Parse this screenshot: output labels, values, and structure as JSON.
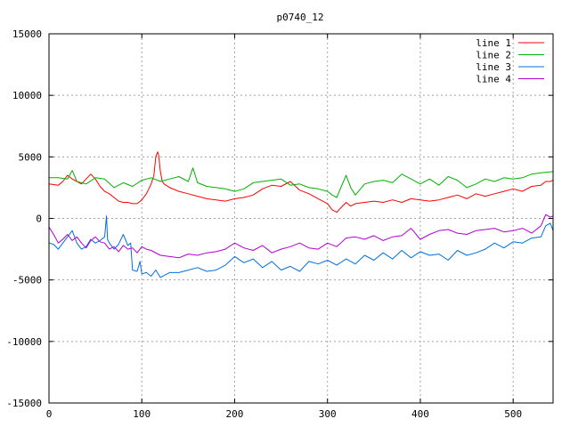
{
  "chart_data": {
    "type": "line",
    "title": "p0740_12",
    "xlabel": "",
    "ylabel": "",
    "xlim": [
      0,
      543
    ],
    "ylim": [
      -15000,
      15000
    ],
    "xticks": [
      0,
      100,
      200,
      300,
      400,
      500
    ],
    "yticks": [
      -15000,
      -10000,
      -5000,
      0,
      5000,
      10000,
      15000
    ],
    "grid": true,
    "legend_position": "top-right",
    "series": [
      {
        "name": "line 1",
        "color": "#ff0000",
        "x": [
          0,
          10,
          15,
          20,
          25,
          30,
          35,
          40,
          45,
          50,
          55,
          60,
          65,
          70,
          75,
          80,
          85,
          90,
          95,
          100,
          105,
          110,
          113,
          115,
          117,
          118,
          120,
          122,
          124,
          130,
          140,
          150,
          160,
          170,
          180,
          190,
          200,
          210,
          220,
          230,
          240,
          250,
          260,
          270,
          280,
          290,
          300,
          305,
          310,
          315,
          320,
          325,
          330,
          340,
          350,
          360,
          370,
          380,
          390,
          400,
          410,
          420,
          430,
          440,
          450,
          460,
          470,
          480,
          490,
          500,
          510,
          520,
          530,
          535,
          540,
          543
        ],
        "y": [
          2800,
          2700,
          3000,
          3500,
          3200,
          3000,
          2800,
          3200,
          3600,
          3200,
          2600,
          2200,
          2000,
          1700,
          1400,
          1300,
          1300,
          1200,
          1200,
          1500,
          2000,
          2800,
          3500,
          5000,
          5400,
          5200,
          3800,
          3000,
          2800,
          2500,
          2200,
          2000,
          1800,
          1600,
          1500,
          1400,
          1600,
          1700,
          1900,
          2400,
          2700,
          2600,
          3000,
          2300,
          2000,
          1600,
          1200,
          700,
          500,
          900,
          1300,
          1000,
          1200,
          1300,
          1400,
          1300,
          1500,
          1300,
          1600,
          1500,
          1400,
          1500,
          1700,
          1900,
          1600,
          2000,
          1800,
          2000,
          2200,
          2400,
          2200,
          2600,
          2700,
          3000,
          3000,
          3100
        ]
      },
      {
        "name": "line 2",
        "color": "#00b000",
        "x": [
          0,
          10,
          20,
          25,
          30,
          40,
          50,
          60,
          70,
          80,
          90,
          100,
          110,
          120,
          130,
          140,
          150,
          155,
          160,
          170,
          180,
          190,
          200,
          210,
          220,
          230,
          240,
          250,
          260,
          270,
          280,
          290,
          300,
          305,
          310,
          315,
          320,
          325,
          330,
          340,
          350,
          360,
          370,
          380,
          390,
          400,
          410,
          420,
          430,
          440,
          450,
          460,
          470,
          480,
          490,
          500,
          510,
          520,
          530,
          543
        ],
        "y": [
          3300,
          3300,
          3200,
          3900,
          3000,
          2800,
          3300,
          3200,
          2500,
          2900,
          2600,
          3100,
          3300,
          3000,
          3200,
          3400,
          3000,
          4100,
          2900,
          2600,
          2500,
          2400,
          2200,
          2400,
          2900,
          3000,
          3100,
          3200,
          2700,
          2800,
          2500,
          2400,
          2200,
          1900,
          1700,
          2600,
          3500,
          2500,
          1900,
          2800,
          3000,
          3100,
          2900,
          3600,
          3200,
          2800,
          3200,
          2700,
          3400,
          3100,
          2500,
          2800,
          3200,
          3000,
          3300,
          3200,
          3300,
          3600,
          3700,
          3800
        ]
      },
      {
        "name": "line 3",
        "color": "#0070e0",
        "x": [
          0,
          5,
          10,
          15,
          20,
          25,
          30,
          35,
          40,
          45,
          50,
          55,
          60,
          62,
          63,
          65,
          70,
          75,
          80,
          85,
          88,
          90,
          95,
          98,
          100,
          105,
          110,
          115,
          120,
          125,
          130,
          140,
          150,
          160,
          170,
          180,
          190,
          200,
          210,
          220,
          230,
          240,
          250,
          260,
          270,
          280,
          290,
          300,
          310,
          320,
          330,
          340,
          350,
          360,
          370,
          380,
          390,
          400,
          410,
          420,
          430,
          440,
          450,
          460,
          470,
          480,
          490,
          500,
          510,
          520,
          530,
          535,
          540,
          543
        ],
        "y": [
          -2000,
          -2100,
          -2500,
          -2000,
          -1500,
          -1000,
          -2000,
          -2500,
          -2300,
          -1700,
          -2000,
          -1800,
          -1500,
          200,
          -1700,
          -2000,
          -2500,
          -2100,
          -1300,
          -2200,
          -2000,
          -4200,
          -4300,
          -3500,
          -4500,
          -4400,
          -4700,
          -4200,
          -4800,
          -4600,
          -4400,
          -4400,
          -4200,
          -4000,
          -4300,
          -4200,
          -3800,
          -3100,
          -3600,
          -3300,
          -4000,
          -3500,
          -4200,
          -3900,
          -4300,
          -3500,
          -3700,
          -3400,
          -3800,
          -3300,
          -3700,
          -3000,
          -3400,
          -2800,
          -3300,
          -2600,
          -3200,
          -2700,
          -3000,
          -2900,
          -3400,
          -2600,
          -3000,
          -2800,
          -2500,
          -2000,
          -2400,
          -1900,
          -2000,
          -1600,
          -1500,
          -600,
          -400,
          -1000
        ]
      },
      {
        "name": "line 4",
        "color": "#b000d0",
        "x": [
          0,
          5,
          10,
          15,
          20,
          25,
          30,
          35,
          40,
          45,
          50,
          55,
          60,
          65,
          70,
          75,
          80,
          85,
          90,
          95,
          100,
          105,
          110,
          120,
          130,
          140,
          150,
          160,
          170,
          180,
          190,
          200,
          210,
          220,
          230,
          240,
          250,
          260,
          270,
          280,
          290,
          300,
          310,
          320,
          330,
          340,
          350,
          360,
          370,
          380,
          390,
          400,
          410,
          420,
          430,
          440,
          450,
          460,
          470,
          480,
          490,
          500,
          510,
          520,
          530,
          535,
          540,
          543
        ],
        "y": [
          -700,
          -1300,
          -2000,
          -1700,
          -1300,
          -1800,
          -1500,
          -2000,
          -2400,
          -1800,
          -1500,
          -1900,
          -2000,
          -2500,
          -2300,
          -2700,
          -2200,
          -2500,
          -2400,
          -2800,
          -2300,
          -2500,
          -2600,
          -3000,
          -3100,
          -3200,
          -2900,
          -3000,
          -2800,
          -2700,
          -2500,
          -2000,
          -2400,
          -2600,
          -2200,
          -2800,
          -2500,
          -2300,
          -2000,
          -2400,
          -2500,
          -2000,
          -2300,
          -1600,
          -1500,
          -1700,
          -1400,
          -1800,
          -1500,
          -1400,
          -800,
          -1700,
          -1300,
          -1000,
          -900,
          -1200,
          -1300,
          -1000,
          -900,
          -800,
          -1100,
          -1000,
          -800,
          -1200,
          -600,
          300,
          100,
          200
        ]
      }
    ]
  }
}
